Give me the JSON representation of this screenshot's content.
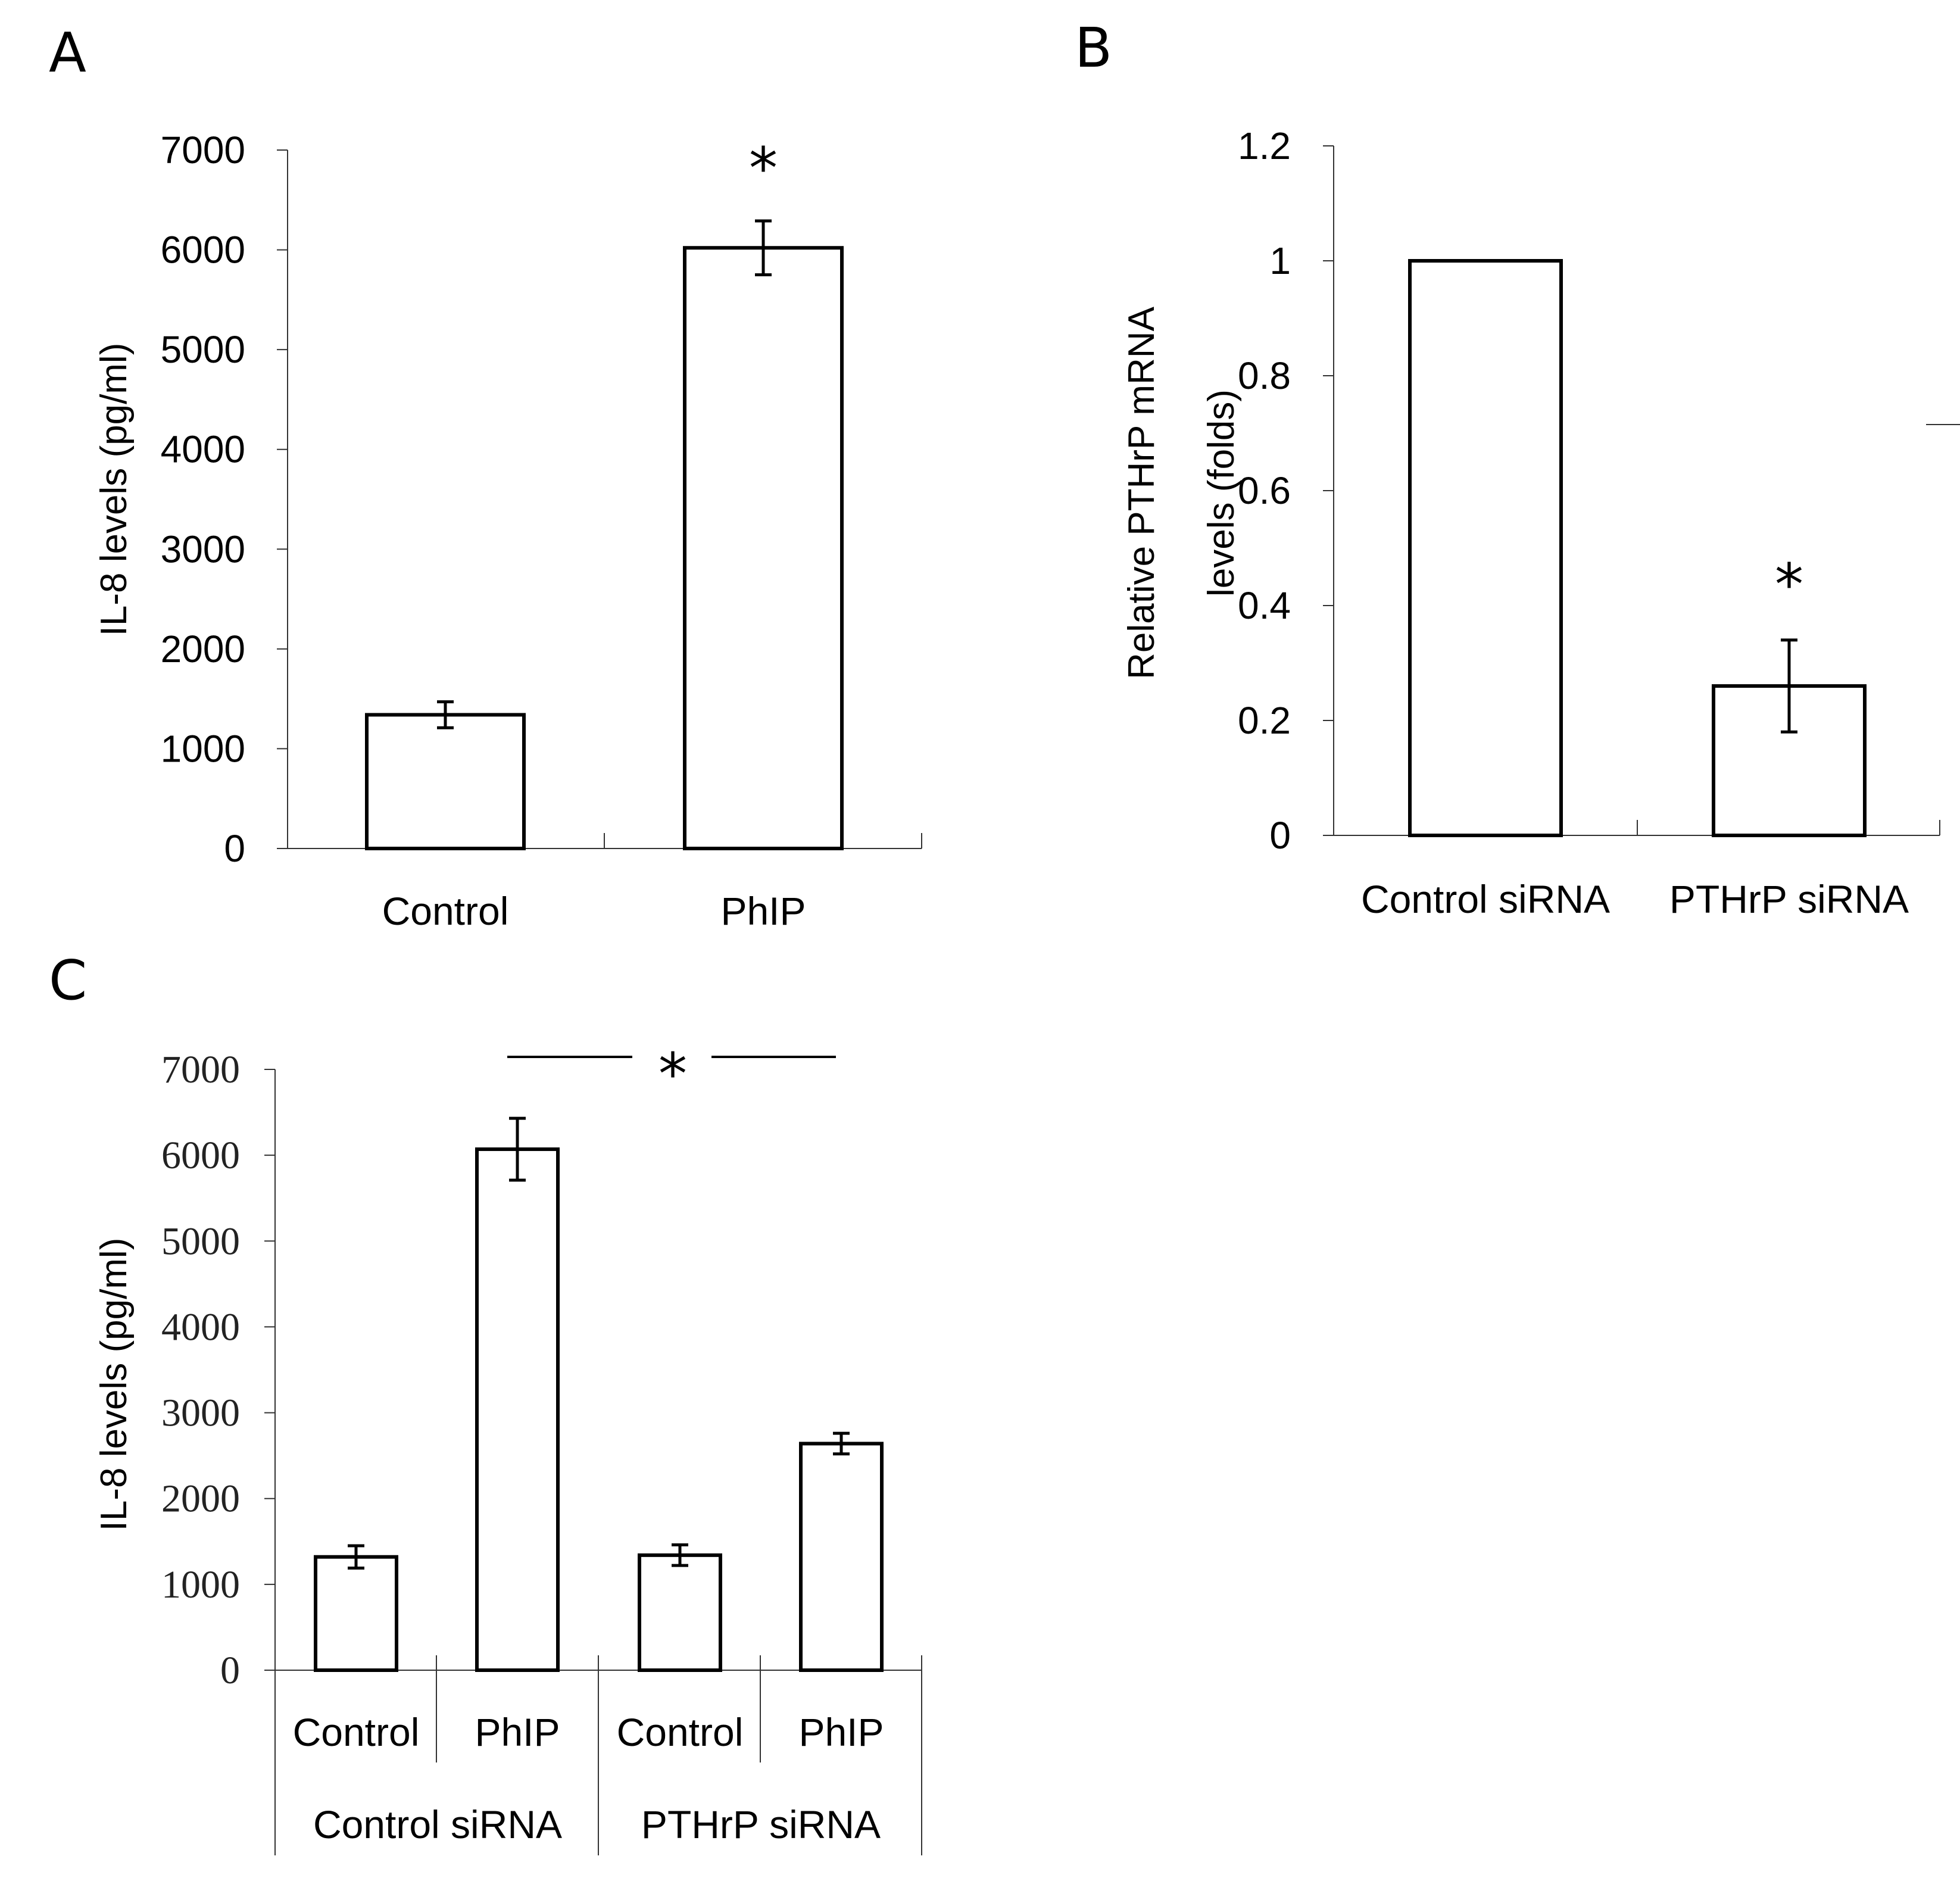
{
  "panels": {
    "a": "A",
    "b": "B",
    "c": "C"
  },
  "chart_data": [
    {
      "id": "A",
      "type": "bar",
      "title": "",
      "xlabel": "",
      "ylabel": "IL-8 levels (pg/ml)",
      "ylim": [
        0,
        7000
      ],
      "yticks": [
        0,
        1000,
        2000,
        3000,
        4000,
        5000,
        6000,
        7000
      ],
      "categories": [
        "Control",
        "PhIP"
      ],
      "values": [
        1340,
        6020
      ],
      "errors": [
        130,
        270
      ],
      "annotations": [
        "",
        "*"
      ],
      "grid": false
    },
    {
      "id": "B",
      "type": "bar",
      "title": "",
      "xlabel": "",
      "ylabel_lines": [
        "Relative PTHrP mRNA",
        "levels (folds)"
      ],
      "ylim": [
        0,
        1.2
      ],
      "yticks": [
        "0",
        "0.2",
        "0.4",
        "0.6",
        "0.8",
        "1",
        "1.2"
      ],
      "categories": [
        "Control siRNA",
        "PTHrP siRNA"
      ],
      "values": [
        1.0,
        0.26
      ],
      "errors": [
        0,
        0.08
      ],
      "annotations": [
        "",
        "*"
      ],
      "grid": false
    },
    {
      "id": "C",
      "type": "bar",
      "title": "",
      "xlabel": "",
      "ylabel": "IL-8 levels (pg/ml)",
      "ylim": [
        0,
        7000
      ],
      "yticks": [
        0,
        1000,
        2000,
        3000,
        4000,
        5000,
        6000,
        7000
      ],
      "categories": [
        "Control",
        "PhIP",
        "Control",
        "PhIP"
      ],
      "groups": [
        "Control siRNA",
        "PTHrP siRNA"
      ],
      "values": [
        1320,
        6070,
        1340,
        2640
      ],
      "errors": [
        130,
        360,
        120,
        120
      ],
      "significance": {
        "between": [
          1,
          3
        ],
        "label": "*"
      },
      "grid": false
    }
  ]
}
